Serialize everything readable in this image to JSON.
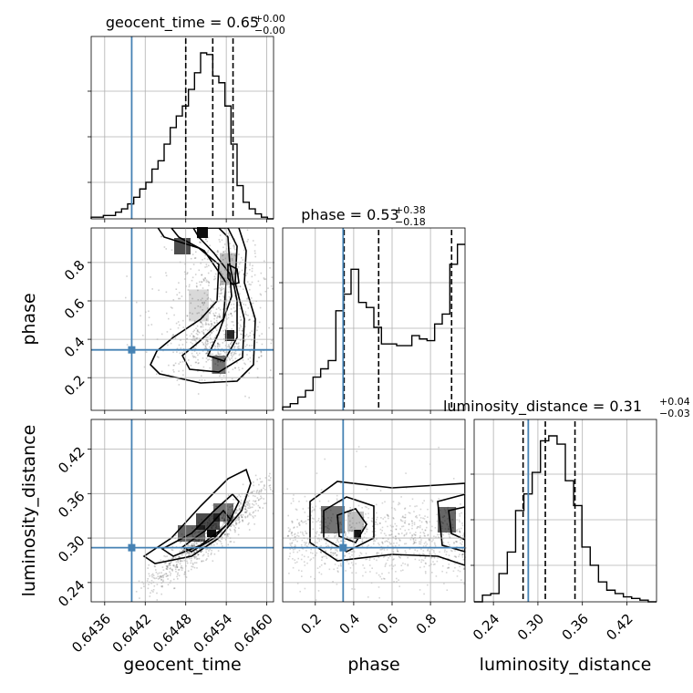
{
  "chart_data": {
    "type": "corner",
    "parameters": [
      "geocent_time",
      "phase",
      "luminosity_distance"
    ],
    "truth": {
      "geocent_time": 0.644,
      "phase": 0.345,
      "luminosity_distance": 0.287
    },
    "truth_color": "#4682b4",
    "line_color": "#000000",
    "ranges": {
      "geocent_time": [
        0.6434,
        0.6461
      ],
      "phase": [
        0.03,
        0.98
      ],
      "luminosity_distance": [
        0.214,
        0.46
      ]
    },
    "ticks": {
      "geocent_time": [
        "0.6436",
        "0.6442",
        "0.6448",
        "0.6454",
        "0.6460"
      ],
      "phase": [
        "0.2",
        "0.4",
        "0.6",
        "0.8"
      ],
      "luminosity_distance": [
        "0.24",
        "0.30",
        "0.36",
        "0.42"
      ]
    },
    "titles": [
      {
        "param": "geocent_time",
        "main": "geocent_time = 0.65",
        "sup": "+0.00",
        "sub": "−0.00"
      },
      {
        "param": "phase",
        "main": "phase = 0.53",
        "sup": "+0.38",
        "sub": "−0.18"
      },
      {
        "param": "luminosity_distance",
        "main": "luminosity_distance = 0.31",
        "sup": "+0.04",
        "sub": "−0.03"
      }
    ],
    "quantiles": {
      "geocent_time": [
        0.6448,
        0.6452,
        0.6455
      ],
      "phase": [
        0.35,
        0.53,
        0.91
      ],
      "luminosity_distance": [
        0.28,
        0.31,
        0.35
      ]
    },
    "histograms": {
      "geocent_time": [
        0.01,
        0.01,
        0.02,
        0.02,
        0.04,
        0.06,
        0.09,
        0.13,
        0.18,
        0.22,
        0.3,
        0.35,
        0.45,
        0.55,
        0.62,
        0.68,
        0.78,
        0.88,
        1.0,
        0.99,
        0.86,
        0.82,
        0.68,
        0.45,
        0.2,
        0.1,
        0.06,
        0.03,
        0.01,
        0.0
      ],
      "phase": [
        0.02,
        0.04,
        0.08,
        0.12,
        0.2,
        0.25,
        0.3,
        0.6,
        0.7,
        0.85,
        0.65,
        0.62,
        0.5,
        0.4,
        0.4,
        0.39,
        0.39,
        0.45,
        0.43,
        0.42,
        0.52,
        0.58,
        0.88,
        1.0
      ],
      "luminosity_distance": [
        0.0,
        0.04,
        0.05,
        0.17,
        0.3,
        0.55,
        0.65,
        0.78,
        0.97,
        1.0,
        0.95,
        0.73,
        0.58,
        0.33,
        0.22,
        0.12,
        0.07,
        0.05,
        0.03,
        0.02,
        0.01,
        0.0
      ]
    },
    "xlabels": [
      "geocent_time",
      "phase",
      "luminosity_distance"
    ],
    "ylabels": [
      "phase",
      "luminosity_distance"
    ]
  }
}
